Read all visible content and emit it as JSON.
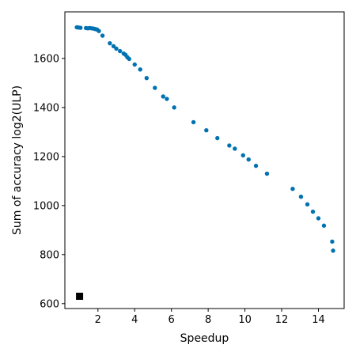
{
  "chart_data": {
    "type": "scatter",
    "title": "",
    "xlabel": "Speedup",
    "ylabel": "Sum of accuracy log2(ULP)",
    "xlim": [
      0.2,
      15.4
    ],
    "ylim": [
      580,
      1790
    ],
    "xticks": [
      2,
      4,
      6,
      8,
      10,
      12,
      14
    ],
    "yticks": [
      600,
      800,
      1000,
      1200,
      1400,
      1600
    ],
    "xtick_labels": [
      "2",
      "4",
      "6",
      "8",
      "10",
      "12",
      "14"
    ],
    "ytick_labels": [
      "600",
      "800",
      "1000",
      "1200",
      "1400",
      "1600"
    ],
    "grid": false,
    "series": [
      {
        "marker": "circle",
        "color": "#0072b2",
        "x": [
          0.85,
          0.95,
          1.05,
          1.35,
          1.45,
          1.55,
          1.65,
          1.75,
          1.85,
          1.95,
          2.05,
          2.25,
          2.65,
          2.85,
          3.0,
          3.2,
          3.4,
          3.5,
          3.6,
          3.7,
          4.0,
          4.3,
          4.65,
          5.1,
          5.55,
          5.75,
          6.15,
          7.2,
          7.9,
          8.5,
          9.15,
          9.45,
          9.9,
          10.2,
          10.6,
          11.2,
          12.6,
          13.05,
          13.4,
          13.7,
          14.0,
          14.3,
          14.75,
          14.8
        ],
        "y": [
          1727,
          1726,
          1725,
          1724,
          1723,
          1724,
          1723,
          1722,
          1720,
          1718,
          1712,
          1693,
          1662,
          1650,
          1640,
          1630,
          1620,
          1615,
          1605,
          1598,
          1575,
          1555,
          1520,
          1480,
          1445,
          1435,
          1400,
          1340,
          1307,
          1275,
          1245,
          1232,
          1205,
          1188,
          1162,
          1130,
          1068,
          1036,
          1005,
          975,
          948,
          918,
          853,
          816
        ]
      },
      {
        "marker": "square",
        "color": "#000000",
        "x": [
          1.0
        ],
        "y": [
          630
        ]
      }
    ]
  }
}
